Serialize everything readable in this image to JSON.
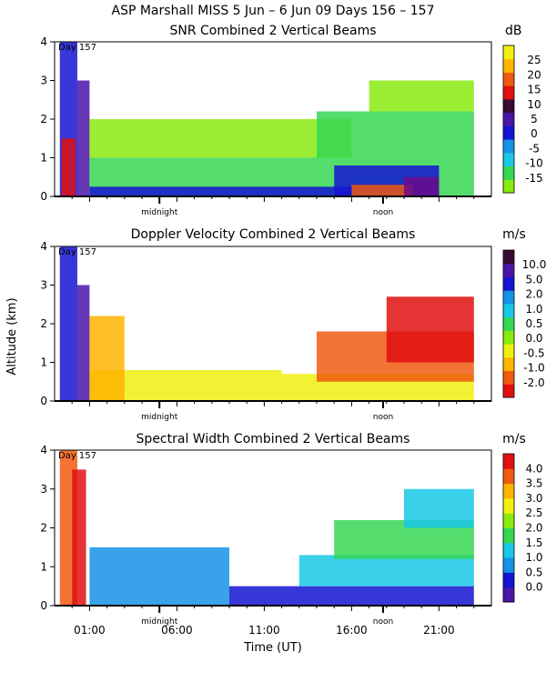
{
  "figure": {
    "title": "ASP Marshall MISS    5 Jun –   6 Jun 09 Days 156 – 157",
    "ylabel": "Altitude (km)",
    "xlabel": "Time (UT)",
    "day_label": "Day 157",
    "midnight_label": "midnight",
    "noon_label": "noon"
  },
  "palette": [
    "#8aea10",
    "#36d654",
    "#19c8e6",
    "#1592e6",
    "#1414d2",
    "#4b14a8",
    "#6a0a8a",
    "#3a0a32",
    "#e01010",
    "#f05a10",
    "#ffb400",
    "#f0f010"
  ],
  "chart_data": [
    {
      "type": "heatmap",
      "title": "SNR Combined 2 Vertical Beams",
      "unit": "dB",
      "ylim": [
        0,
        4
      ],
      "yticks": [
        "0",
        "1",
        "2",
        "3",
        "4"
      ],
      "xlim_hours_ut": [
        -1,
        24
      ],
      "color_scale_labels": [
        "-15",
        "-10",
        "-5",
        "0",
        "5",
        "10",
        "15",
        "20",
        "25"
      ],
      "color_scale_colors": [
        "#8aea10",
        "#36d654",
        "#19c8e6",
        "#1592e6",
        "#1414d2",
        "#4b14a8",
        "#3a0a32",
        "#e01010",
        "#f05a10",
        "#ffb400",
        "#f0f010"
      ],
      "regions": [
        {
          "t0": -0.7,
          "t1": 0.3,
          "h0": 0.0,
          "h1": 4.0,
          "color": "#1414d2"
        },
        {
          "t0": 0.3,
          "t1": 1.0,
          "h0": 0.0,
          "h1": 3.0,
          "color": "#4b14a8"
        },
        {
          "t0": -0.6,
          "t1": 0.2,
          "h0": 0.0,
          "h1": 1.5,
          "color": "#e01010"
        },
        {
          "t0": 1.0,
          "t1": 23.0,
          "h0": 0.0,
          "h1": 1.0,
          "color": "#36d654"
        },
        {
          "t0": 1.0,
          "t1": 16.0,
          "h0": 1.0,
          "h1": 2.0,
          "color": "#8aea10"
        },
        {
          "t0": 14.0,
          "t1": 23.0,
          "h0": 1.0,
          "h1": 2.2,
          "color": "#36d654"
        },
        {
          "t0": 17.0,
          "t1": 23.0,
          "h0": 2.2,
          "h1": 3.0,
          "color": "#8aea10"
        },
        {
          "t0": 1.0,
          "t1": 19.0,
          "h0": 0.0,
          "h1": 0.25,
          "color": "#1414d2"
        },
        {
          "t0": 15.0,
          "t1": 21.0,
          "h0": 0.0,
          "h1": 0.8,
          "color": "#1414d2"
        },
        {
          "t0": 16.0,
          "t1": 19.5,
          "h0": 0.0,
          "h1": 0.3,
          "color": "#f05a10"
        },
        {
          "t0": 19.0,
          "t1": 21.0,
          "h0": 0.0,
          "h1": 0.5,
          "color": "#6a0a8a"
        }
      ]
    },
    {
      "type": "heatmap",
      "title": "Doppler Velocity Combined 2 Vertical Beams",
      "unit": "m/s",
      "ylim": [
        0,
        4
      ],
      "yticks": [
        "0",
        "1",
        "2",
        "3",
        "4"
      ],
      "xlim_hours_ut": [
        -1,
        24
      ],
      "color_scale_labels": [
        "-2.0",
        "-1.0",
        "-0.5",
        "0.0",
        "0.5",
        "1.0",
        "2.0",
        "5.0",
        "10.0"
      ],
      "color_scale_colors": [
        "#e01010",
        "#f05a10",
        "#ffb400",
        "#f0f010",
        "#8aea10",
        "#36d654",
        "#19c8e6",
        "#1592e6",
        "#1414d2",
        "#4b14a8",
        "#3a0a32"
      ],
      "regions": [
        {
          "t0": -0.7,
          "t1": 0.3,
          "h0": 0.0,
          "h1": 4.0,
          "color": "#1414d2"
        },
        {
          "t0": 0.3,
          "t1": 1.0,
          "h0": 0.0,
          "h1": 3.0,
          "color": "#4b14a8"
        },
        {
          "t0": 1.0,
          "t1": 12.0,
          "h0": 0.0,
          "h1": 0.8,
          "color": "#f0f010"
        },
        {
          "t0": 1.0,
          "t1": 3.0,
          "h0": 0.0,
          "h1": 2.2,
          "color": "#ffb400"
        },
        {
          "t0": 12.0,
          "t1": 23.0,
          "h0": 0.0,
          "h1": 0.7,
          "color": "#f0f010"
        },
        {
          "t0": 14.0,
          "t1": 23.0,
          "h0": 0.5,
          "h1": 1.8,
          "color": "#f05a10"
        },
        {
          "t0": 18.0,
          "t1": 23.0,
          "h0": 1.0,
          "h1": 2.7,
          "color": "#e01010"
        }
      ]
    },
    {
      "type": "heatmap",
      "title": "Spectral Width Combined 2 Vertical Beams",
      "unit": "m/s",
      "ylim": [
        0,
        4
      ],
      "yticks": [
        "0",
        "1",
        "2",
        "3",
        "4"
      ],
      "xlim_hours_ut": [
        -1,
        24
      ],
      "color_scale_labels": [
        "0.0",
        "0.5",
        "1.0",
        "1.5",
        "2.0",
        "2.5",
        "3.0",
        "3.5",
        "4.0"
      ],
      "color_scale_colors": [
        "#4b14a8",
        "#1414d2",
        "#1592e6",
        "#19c8e6",
        "#36d654",
        "#8aea10",
        "#f0f010",
        "#ffb400",
        "#f05a10",
        "#e01010"
      ],
      "regions": [
        {
          "t0": -0.7,
          "t1": 0.3,
          "h0": 0.0,
          "h1": 4.0,
          "color": "#f05a10"
        },
        {
          "t0": 0.0,
          "t1": 0.8,
          "h0": 0.0,
          "h1": 3.5,
          "color": "#e01010"
        },
        {
          "t0": 1.0,
          "t1": 9.0,
          "h0": 0.0,
          "h1": 1.5,
          "color": "#1592e6"
        },
        {
          "t0": 9.0,
          "t1": 23.0,
          "h0": 0.0,
          "h1": 0.5,
          "color": "#1414d2"
        },
        {
          "t0": 13.0,
          "t1": 23.0,
          "h0": 0.5,
          "h1": 1.3,
          "color": "#19c8e6"
        },
        {
          "t0": 15.0,
          "t1": 23.0,
          "h0": 1.2,
          "h1": 2.2,
          "color": "#36d654"
        },
        {
          "t0": 19.0,
          "t1": 23.0,
          "h0": 2.0,
          "h1": 3.0,
          "color": "#19c8e6"
        }
      ]
    }
  ],
  "x_axis": {
    "tick_labels": [
      "01:00",
      "06:00",
      "11:00",
      "16:00",
      "21:00"
    ],
    "tick_hours": [
      1,
      6,
      11,
      16,
      21
    ]
  }
}
